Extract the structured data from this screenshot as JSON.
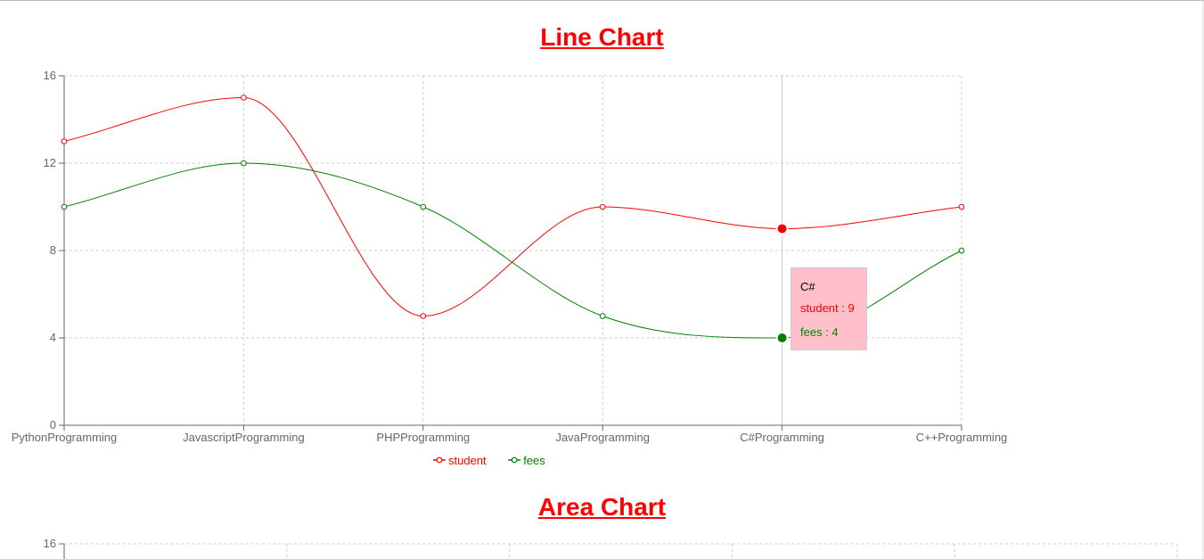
{
  "line_chart_title": "Line Chart",
  "area_chart_title": "Area Chart",
  "chart_data": [
    {
      "type": "line",
      "title": "Line Chart",
      "categories": [
        "PythonProgramming",
        "JavascriptProgramming",
        "PHPProgramming",
        "JavaProgramming",
        "C#Programming",
        "C++Programming"
      ],
      "series": [
        {
          "name": "student",
          "values": [
            13,
            15,
            5,
            10,
            9,
            10
          ],
          "color": "#ff0000"
        },
        {
          "name": "fees",
          "values": [
            10,
            12,
            10,
            5,
            4,
            8
          ],
          "color": "#008000"
        }
      ],
      "ylim": [
        0,
        16
      ],
      "yticks": [
        0,
        4,
        8,
        12,
        16
      ],
      "grid": true,
      "legend": "bottom-center",
      "active_category_index": 4,
      "tooltip": {
        "label": "C#",
        "lines": [
          {
            "text": "student : 9",
            "color": "#ff0000"
          },
          {
            "text": "fees : 4",
            "color": "#008000"
          }
        ]
      }
    },
    {
      "type": "area",
      "title": "Area Chart",
      "ylim": [
        0,
        16
      ],
      "visible_yticks": [
        16
      ],
      "grid": true
    }
  ]
}
